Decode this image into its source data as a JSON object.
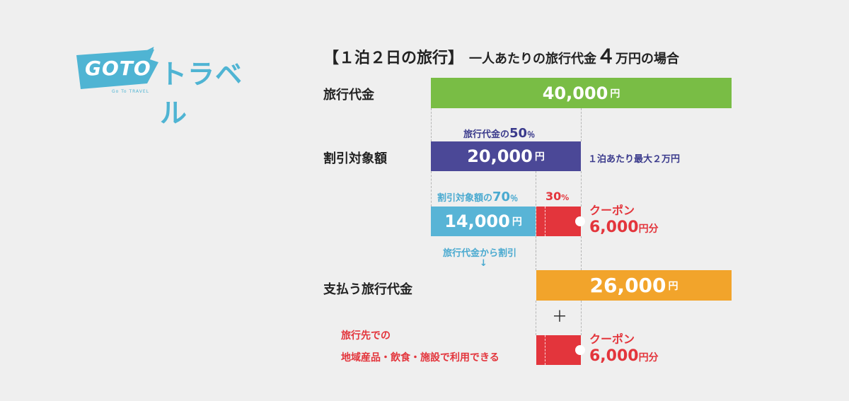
{
  "logo": {
    "word": "GOTO",
    "kana": "トラベル",
    "sub": "Go To TRAVEL"
  },
  "title": {
    "main": "【１泊２日の旅行】",
    "sub": "一人あたりの旅行代金",
    "num": "４",
    "tail": "万円の場合"
  },
  "rows": {
    "total": "旅行代金",
    "target": "割引対象額",
    "pay": "支払う旅行代金"
  },
  "bars": {
    "total": {
      "num": "40,000",
      "unit": "円"
    },
    "target": {
      "num": "20,000",
      "unit": "円"
    },
    "subsidy": {
      "num": "14,000",
      "unit": "円"
    },
    "pay": {
      "num": "26,000",
      "unit": "円"
    }
  },
  "notes": {
    "half_prefix": "旅行代金の",
    "half_num": "50",
    "half_pct": "％",
    "per_night": "１泊あたり最大２万円",
    "seventy_prefix": "割引対象額の",
    "seventy_num": "70",
    "seventy_pct": "％",
    "thirty_num": "30",
    "thirty_pct": "%",
    "deduct": "旅行代金から割引",
    "arrow": "↓",
    "plus": "＋",
    "local_line1": "旅行先での",
    "local_line2": "地域産品・飲食・施設で利用できる"
  },
  "coupons": [
    {
      "label": "クーポン",
      "num": "6,000",
      "unit": "円分"
    },
    {
      "label": "クーポン",
      "num": "6,000",
      "unit": "円分"
    }
  ],
  "colors": {
    "total": "#79bd45",
    "target": "#4b4897",
    "subsidy": "#58b4d6",
    "coupon": "#e3353c",
    "pay": "#f2a42b",
    "logo": "#4fb4d3"
  }
}
